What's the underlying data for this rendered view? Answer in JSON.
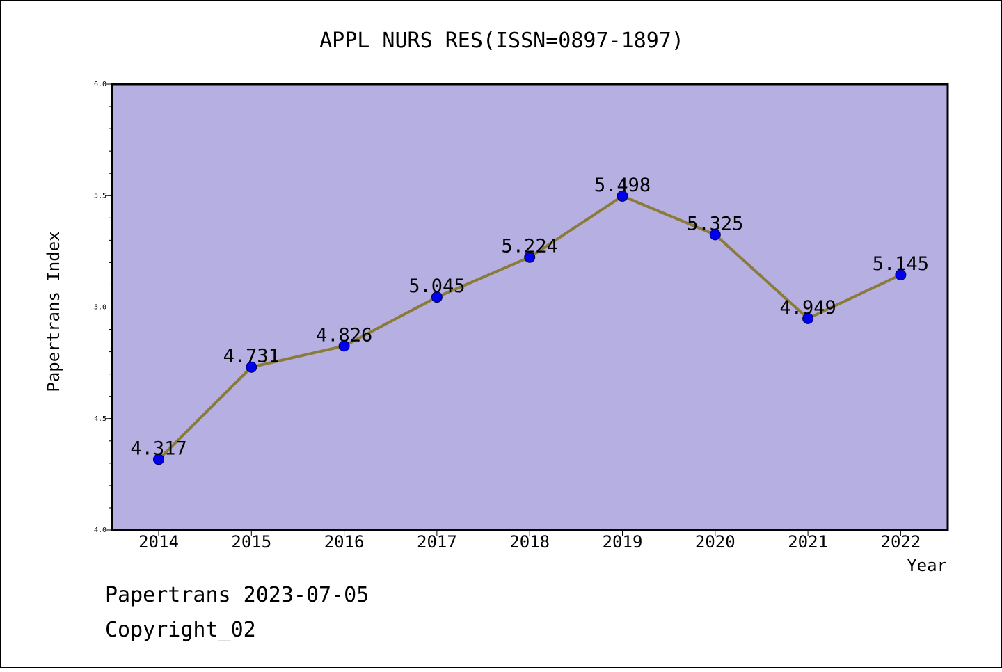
{
  "chart_data": {
    "type": "line",
    "title": "APPL NURS RES(ISSN=0897-1897)",
    "xlabel": "Year",
    "ylabel": "Papertrans Index",
    "x": [
      "2014",
      "2015",
      "2016",
      "2017",
      "2018",
      "2019",
      "2020",
      "2021",
      "2022"
    ],
    "series": [
      {
        "values": [
          4.317,
          4.731,
          4.826,
          5.045,
          5.224,
          5.498,
          5.325,
          4.949,
          5.145
        ],
        "data_labels": [
          "4.317",
          "4.731",
          "4.826",
          "5.045",
          "5.224",
          "5.498",
          "5.325",
          "4.949",
          "5.145"
        ]
      }
    ],
    "ylim": [
      4.0,
      6.0
    ],
    "yticks": [
      "4.0",
      "4.5",
      "5.0",
      "5.5",
      "6.0"
    ],
    "grid": false,
    "legend": "none",
    "colors": {
      "plot_background": "#b5afe2",
      "line": "#8b7b3a",
      "marker": "#0000ee"
    }
  },
  "footer": {
    "line1": "Papertrans 2023-07-05",
    "line2": "Copyright_02"
  }
}
